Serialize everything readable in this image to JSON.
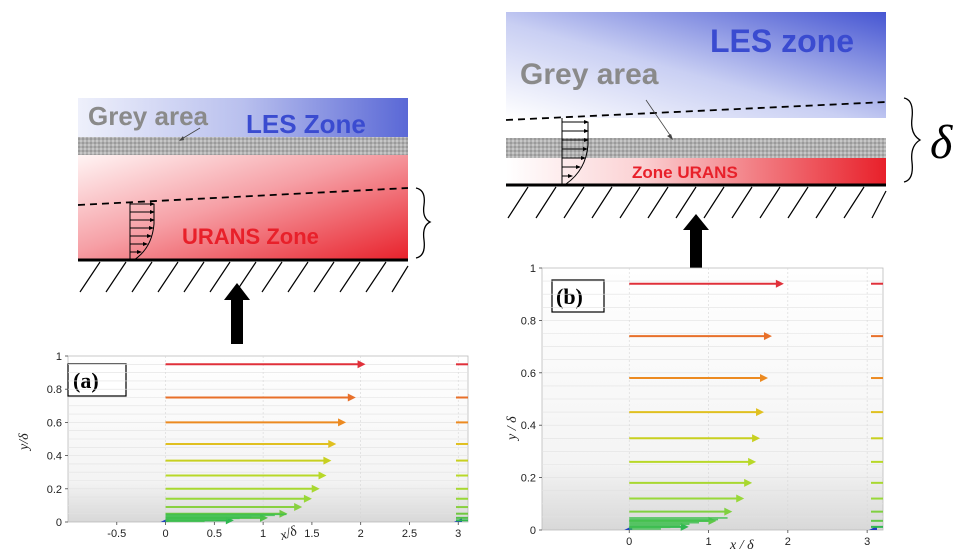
{
  "colors": {
    "les_blue": "#3a4bd0",
    "urans_red": "#e8202a",
    "grey_band": "#9a9a9a",
    "grey_text": "#8a8a8a",
    "arrow_black": "#000000"
  },
  "diagram_a": {
    "grey_area_label": "Grey area",
    "les_label": "LES Zone",
    "urans_label": "URANS Zone"
  },
  "diagram_b": {
    "grey_area_label": "Grey area",
    "les_label": "LES zone",
    "urans_label": "Zone URANS",
    "delta_symbol": "δ"
  },
  "chart_data": [
    {
      "type": "vector-field",
      "panel_label": "(a)",
      "xlabel": "x/δ",
      "ylabel": "y/δ",
      "x_ticks": [
        "-0.5",
        "0",
        "0.5",
        "1",
        "1.5",
        "2",
        "2.5",
        "3"
      ],
      "y_ticks": [
        "0",
        "0.2",
        "0.4",
        "0.6",
        "0.8",
        "1"
      ],
      "xlim": [
        -1,
        3.1
      ],
      "ylim": [
        0,
        1
      ],
      "profile_x0": 0,
      "arrows": [
        {
          "y": 0.95,
          "u": 2.05,
          "color": "#e0303a"
        },
        {
          "y": 0.75,
          "u": 1.95,
          "color": "#e8702a"
        },
        {
          "y": 0.6,
          "u": 1.85,
          "color": "#ec8a20"
        },
        {
          "y": 0.47,
          "u": 1.75,
          "color": "#e0c020"
        },
        {
          "y": 0.37,
          "u": 1.7,
          "color": "#c8d020"
        },
        {
          "y": 0.28,
          "u": 1.65,
          "color": "#b8d828"
        },
        {
          "y": 0.2,
          "u": 1.58,
          "color": "#a8d830"
        },
        {
          "y": 0.14,
          "u": 1.5,
          "color": "#98d838"
        },
        {
          "y": 0.09,
          "u": 1.4,
          "color": "#88d040"
        },
        {
          "y": 0.05,
          "u": 1.25,
          "color": "#70c840"
        },
        {
          "y": 0.025,
          "u": 1.05,
          "color": "#50c048"
        },
        {
          "y": 0.01,
          "u": 0.7,
          "color": "#30b850"
        }
      ]
    },
    {
      "type": "vector-field",
      "panel_label": "(b)",
      "xlabel": "x / δ",
      "ylabel": "y / δ",
      "x_ticks": [
        "0",
        "1",
        "2",
        "3"
      ],
      "y_ticks": [
        "0",
        "0.2",
        "0.4",
        "0.6",
        "0.8",
        "1"
      ],
      "xlim": [
        -1.1,
        3.2
      ],
      "ylim": [
        0,
        1
      ],
      "profile_x0": 0,
      "arrows": [
        {
          "y": 0.94,
          "u": 1.95,
          "color": "#e0303a"
        },
        {
          "y": 0.74,
          "u": 1.8,
          "color": "#e8702a"
        },
        {
          "y": 0.58,
          "u": 1.75,
          "color": "#ec8a20"
        },
        {
          "y": 0.45,
          "u": 1.7,
          "color": "#e0c020"
        },
        {
          "y": 0.35,
          "u": 1.65,
          "color": "#c8d020"
        },
        {
          "y": 0.26,
          "u": 1.6,
          "color": "#b8d828"
        },
        {
          "y": 0.18,
          "u": 1.55,
          "color": "#a8d830"
        },
        {
          "y": 0.12,
          "u": 1.45,
          "color": "#98d838"
        },
        {
          "y": 0.07,
          "u": 1.3,
          "color": "#80d040"
        },
        {
          "y": 0.035,
          "u": 1.1,
          "color": "#60c848"
        },
        {
          "y": 0.012,
          "u": 0.75,
          "color": "#30b850"
        }
      ]
    }
  ]
}
